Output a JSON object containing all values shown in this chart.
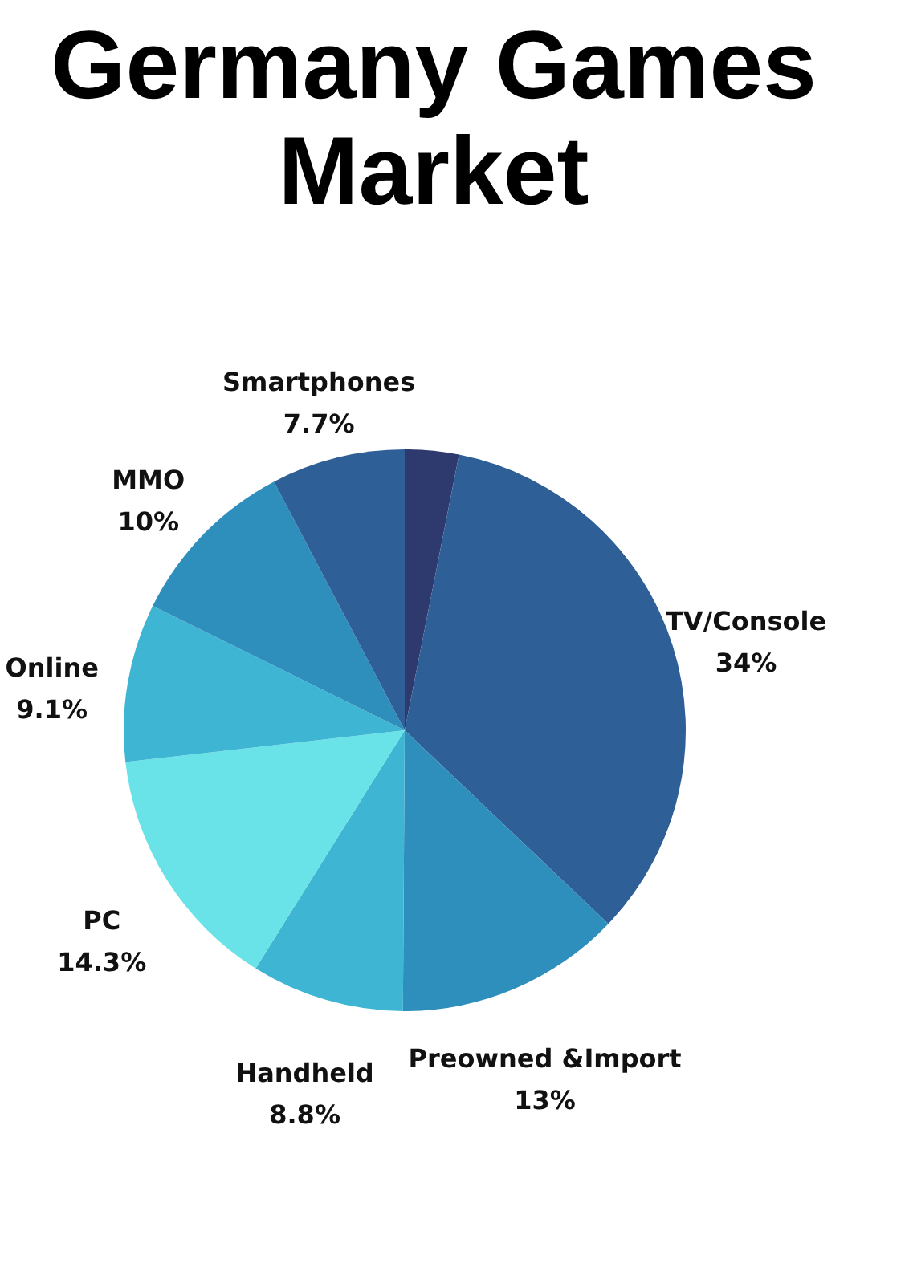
{
  "chart_data": {
    "type": "pie",
    "title": "Germany Games Market",
    "categories": [
      null,
      "TV/Console",
      "Preowned &Import",
      "Handheld",
      "PC",
      "Online",
      "MMO",
      "Smartphones"
    ],
    "values": [
      3.1,
      34,
      13,
      8.8,
      14.3,
      9.1,
      10,
      7.7
    ],
    "value_labels": [
      null,
      "34%",
      "13%",
      "8.8%",
      "14.3%",
      "9.1%",
      "10%",
      "7.7%"
    ],
    "colors": [
      "#2e3a6e",
      "#2e5f96",
      "#2e8fbd",
      "#3fb5d4",
      "#6ae3e8",
      "#3fb5d4",
      "#2e8fbd",
      "#2e5f96"
    ]
  }
}
